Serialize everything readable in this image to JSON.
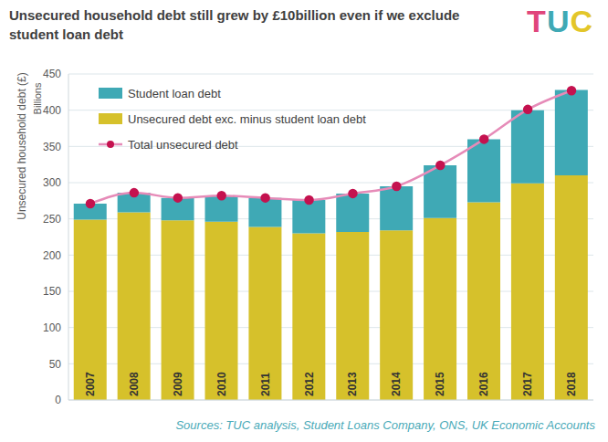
{
  "chart_data": {
    "type": "bar",
    "title": "Unsecured household debt still grew by £10billion even if we exclude student loan debt",
    "logo": "TUC",
    "ylabel": "Unsecured household debt (£)",
    "yunit": "Billions",
    "source": "Sources: TUC analysis, Student Loans Company, ONS, UK Economic Accounts",
    "categories": [
      "2007",
      "2008",
      "2009",
      "2010",
      "2011",
      "2012",
      "2013",
      "2014",
      "2015",
      "2016",
      "2017",
      "2018"
    ],
    "series": [
      {
        "name": "Student loan debt",
        "type": "bar",
        "color": "#3fa9b5",
        "values": [
          22,
          27,
          31,
          36,
          40,
          46,
          53,
          61,
          73,
          87,
          101,
          118
        ]
      },
      {
        "name": "Unsecured debt exc. minus student loan debt",
        "type": "bar",
        "color": "#d6c12b",
        "values": [
          249,
          259,
          248,
          246,
          239,
          230,
          232,
          234,
          251,
          273,
          299,
          310
        ]
      },
      {
        "name": "Total unsecured debt",
        "type": "line",
        "color": "#e68bb8",
        "marker": "circle",
        "values": [
          271,
          286,
          279,
          282,
          279,
          276,
          285,
          295,
          324,
          360,
          401,
          427
        ]
      }
    ],
    "ylim": [
      0,
      450
    ],
    "yticks": [
      0,
      50,
      100,
      150,
      200,
      250,
      300,
      350,
      400,
      450
    ],
    "stacked": true,
    "grid": true,
    "legend": "upper left"
  }
}
